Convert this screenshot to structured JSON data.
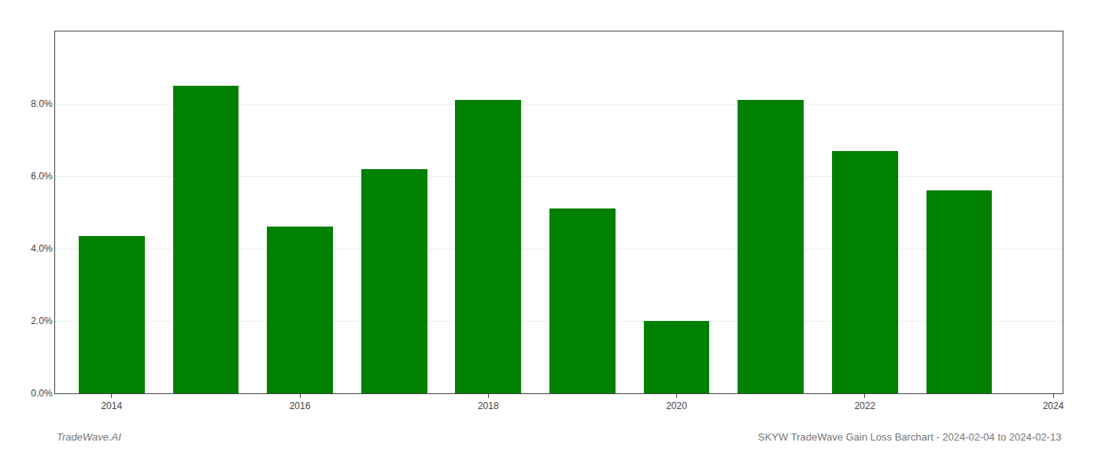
{
  "chart_data": {
    "type": "bar",
    "x": [
      2014,
      2015,
      2016,
      2017,
      2018,
      2019,
      2020,
      2021,
      2022,
      2023
    ],
    "values": [
      0.0435,
      0.085,
      0.046,
      0.062,
      0.081,
      0.051,
      0.02,
      0.081,
      0.067,
      0.056
    ],
    "color": "#008000",
    "xlim": [
      2013.4,
      2024.1
    ],
    "xticks": [
      2014,
      2016,
      2018,
      2020,
      2022,
      2024
    ],
    "ylim": [
      0,
      0.1
    ],
    "yticks": [
      {
        "value": 0.0,
        "label": "0.0%"
      },
      {
        "value": 0.02,
        "label": "2.0%"
      },
      {
        "value": 0.04,
        "label": "4.0%"
      },
      {
        "value": 0.06,
        "label": "6.0%"
      },
      {
        "value": 0.08,
        "label": "8.0%"
      }
    ],
    "grid": true,
    "annotations": [
      "TradeWave.AI",
      "SKYW TradeWave Gain Loss Barchart - 2024-02-04 to 2024-02-13"
    ]
  }
}
